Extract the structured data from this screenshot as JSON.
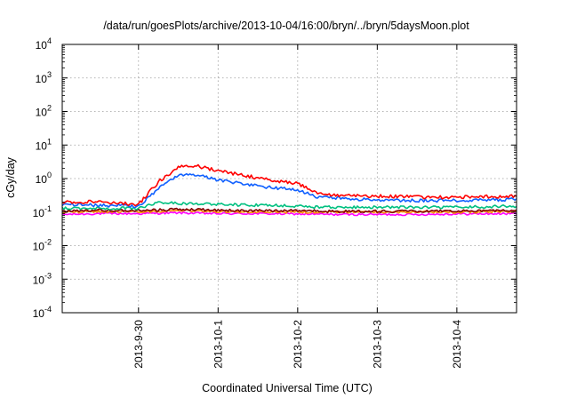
{
  "chart_data": {
    "type": "line",
    "title": "/data/run/goesPlots/archive/2013-10-04/16:00/bryn/../bryn/5daysMoon.plot",
    "xlabel": "Coordinated Universal Time (UTC)",
    "ylabel": "cGy/day",
    "yscale": "log",
    "ylim": [
      0.0001,
      10000
    ],
    "xlim": [
      "2013-09-29 01:00",
      "2013-10-04 18:00"
    ],
    "x_ticks": [
      "2013-9-30",
      "2013-10-1",
      "2013-10-2",
      "2013-10-3",
      "2013-10-4"
    ],
    "y_ticks": [
      {
        "base": "10",
        "exp": "-4",
        "value": 0.0001
      },
      {
        "base": "10",
        "exp": "-3",
        "value": 0.001
      },
      {
        "base": "10",
        "exp": "-2",
        "value": 0.01
      },
      {
        "base": "10",
        "exp": "-1",
        "value": 0.1
      },
      {
        "base": "10",
        "exp": "0",
        "value": 1
      },
      {
        "base": "10",
        "exp": "1",
        "value": 10
      },
      {
        "base": "10",
        "exp": "2",
        "value": 100
      },
      {
        "base": "10",
        "exp": "3",
        "value": 1000
      },
      {
        "base": "10",
        "exp": "4",
        "value": 10000
      }
    ],
    "grid": true,
    "legend": "none",
    "series": [
      {
        "color": "#ff00ff",
        "x": [
          "2013-09-29 01:00",
          "2013-09-29 12:00",
          "2013-09-30 00:00",
          "2013-09-30 12:00",
          "2013-10-01 00:00",
          "2013-10-01 12:00",
          "2013-10-02 00:00",
          "2013-10-02 12:00",
          "2013-10-03 00:00",
          "2013-10-03 12:00",
          "2013-10-04 00:00",
          "2013-10-04 18:00"
        ],
        "y": [
          0.085,
          0.09,
          0.09,
          0.095,
          0.09,
          0.09,
          0.088,
          0.085,
          0.085,
          0.085,
          0.088,
          0.09
        ]
      },
      {
        "color": "#ff8c00",
        "x": [
          "2013-09-29 01:00",
          "2013-09-29 12:00",
          "2013-09-30 00:00",
          "2013-09-30 12:00",
          "2013-10-01 00:00",
          "2013-10-01 12:00",
          "2013-10-02 00:00",
          "2013-10-02 12:00",
          "2013-10-03 00:00",
          "2013-10-03 12:00",
          "2013-10-04 00:00",
          "2013-10-04 18:00"
        ],
        "y": [
          0.1,
          0.105,
          0.1,
          0.11,
          0.105,
          0.1,
          0.1,
          0.1,
          0.1,
          0.1,
          0.1,
          0.105
        ]
      },
      {
        "color": "#800000",
        "x": [
          "2013-09-29 01:00",
          "2013-09-29 12:00",
          "2013-09-30 00:00",
          "2013-09-30 12:00",
          "2013-10-01 00:00",
          "2013-10-01 12:00",
          "2013-10-02 00:00",
          "2013-10-02 12:00",
          "2013-10-03 00:00",
          "2013-10-03 12:00",
          "2013-10-04 00:00",
          "2013-10-04 18:00"
        ],
        "y": [
          0.11,
          0.115,
          0.11,
          0.12,
          0.115,
          0.11,
          0.11,
          0.105,
          0.105,
          0.105,
          0.11,
          0.11
        ]
      },
      {
        "color": "#00c080",
        "x": [
          "2013-09-29 01:00",
          "2013-09-29 12:00",
          "2013-09-30 00:00",
          "2013-09-30 06:00",
          "2013-09-30 12:00",
          "2013-10-01 00:00",
          "2013-10-01 12:00",
          "2013-10-02 00:00",
          "2013-10-02 06:00",
          "2013-10-03 00:00",
          "2013-10-04 00:00",
          "2013-10-04 18:00"
        ],
        "y": [
          0.13,
          0.13,
          0.13,
          0.2,
          0.18,
          0.17,
          0.16,
          0.15,
          0.14,
          0.14,
          0.14,
          0.15
        ]
      },
      {
        "color": "#1060ff",
        "x": [
          "2013-09-29 01:00",
          "2013-09-29 12:00",
          "2013-09-30 00:00",
          "2013-09-30 06:00",
          "2013-09-30 12:00",
          "2013-09-30 18:00",
          "2013-10-01 00:00",
          "2013-10-01 12:00",
          "2013-10-02 00:00",
          "2013-10-02 06:00",
          "2013-10-02 12:00",
          "2013-10-03 00:00",
          "2013-10-03 12:00",
          "2013-10-04 00:00",
          "2013-10-04 18:00"
        ],
        "y": [
          0.17,
          0.16,
          0.15,
          0.5,
          1.3,
          1.3,
          0.9,
          0.6,
          0.45,
          0.28,
          0.26,
          0.23,
          0.22,
          0.22,
          0.24
        ]
      },
      {
        "color": "#ff0000",
        "x": [
          "2013-09-29 01:00",
          "2013-09-29 12:00",
          "2013-09-30 00:00",
          "2013-09-30 06:00",
          "2013-09-30 12:00",
          "2013-09-30 18:00",
          "2013-10-01 00:00",
          "2013-10-01 12:00",
          "2013-10-02 00:00",
          "2013-10-02 06:00",
          "2013-10-02 12:00",
          "2013-10-03 00:00",
          "2013-10-03 12:00",
          "2013-10-04 00:00",
          "2013-10-04 18:00"
        ],
        "y": [
          0.2,
          0.2,
          0.17,
          0.8,
          2.2,
          2.3,
          1.7,
          1.05,
          0.7,
          0.38,
          0.32,
          0.3,
          0.28,
          0.28,
          0.3
        ]
      }
    ]
  }
}
